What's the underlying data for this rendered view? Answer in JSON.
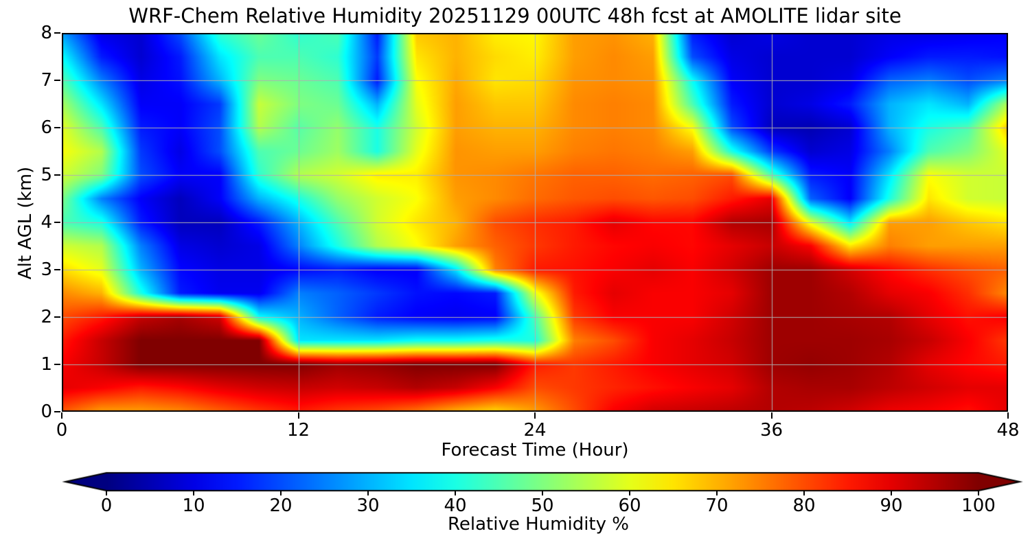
{
  "title": "WRF-Chem Relative Humidity 20251129 00UTC 48h fcst at AMOLITE lidar site",
  "colors": {
    "background": "#ffffff",
    "text": "#000000",
    "spine": "#000000",
    "grid": "#b0b0b0",
    "colormap_under": "#000080",
    "colormap_over": "#800000"
  },
  "chart_data": {
    "type": "heatmap",
    "title": "WRF-Chem Relative Humidity 20251129 00UTC 48h fcst at AMOLITE lidar site",
    "xlabel": "Forecast Time (Hour)",
    "ylabel": "Alt AGL (km)",
    "colorbar_label": "Relative Humidity %",
    "colormap": "jet",
    "grid": true,
    "legend_position": "none",
    "xlim": [
      0,
      48
    ],
    "ylim": [
      0,
      8
    ],
    "clim": [
      0,
      100
    ],
    "x_ticks": [
      0,
      12,
      24,
      36,
      48
    ],
    "y_ticks": [
      0,
      1,
      2,
      3,
      4,
      5,
      6,
      7,
      8
    ],
    "colorbar_ticks": [
      0,
      10,
      20,
      30,
      40,
      50,
      60,
      70,
      80,
      90,
      100
    ],
    "grid_x": [
      12,
      24,
      36
    ],
    "grid_y": [
      1,
      2,
      3,
      4,
      5,
      6,
      7
    ],
    "x": [
      0,
      2,
      4,
      6,
      8,
      10,
      12,
      14,
      16,
      18,
      20,
      22,
      24,
      26,
      28,
      30,
      32,
      34,
      36,
      38,
      40,
      42,
      44,
      46,
      48
    ],
    "y": [
      0,
      0.5,
      1,
      1.5,
      2,
      2.5,
      3,
      3.5,
      4,
      4.5,
      5,
      5.5,
      6,
      6.5,
      7,
      7.5,
      8
    ],
    "values_units": "%",
    "rh": [
      [
        79,
        72,
        72,
        74,
        78,
        82,
        85,
        82,
        80,
        76,
        70,
        66,
        72,
        80,
        88,
        92,
        93,
        94,
        95,
        94,
        92,
        89,
        88,
        86,
        90
      ],
      [
        90,
        88,
        85,
        87,
        90,
        92,
        93,
        92,
        93,
        95,
        93,
        88,
        80,
        82,
        84,
        86,
        88,
        90,
        95,
        96,
        96,
        94,
        92,
        90,
        90
      ],
      [
        88,
        93,
        100,
        100,
        100,
        100,
        100,
        97,
        98,
        100,
        100,
        100,
        85,
        82,
        85,
        88,
        90,
        92,
        97,
        98,
        97,
        95,
        90,
        87,
        85
      ],
      [
        85,
        93,
        100,
        100,
        100,
        100,
        35,
        35,
        35,
        38,
        38,
        40,
        40,
        75,
        80,
        88,
        90,
        93,
        97,
        97,
        97,
        96,
        93,
        88,
        82
      ],
      [
        80,
        85,
        93,
        96,
        92,
        38,
        30,
        22,
        15,
        12,
        11,
        12,
        45,
        82,
        88,
        88,
        88,
        92,
        97,
        97,
        96,
        95,
        90,
        86,
        88
      ],
      [
        74,
        70,
        40,
        15,
        11,
        11,
        25,
        22,
        18,
        14,
        13,
        15,
        60,
        85,
        90,
        88,
        88,
        90,
        97,
        97,
        95,
        90,
        88,
        83,
        74
      ],
      [
        66,
        60,
        30,
        13,
        10,
        10,
        13,
        15,
        12,
        12,
        35,
        75,
        85,
        86,
        88,
        90,
        88,
        92,
        97,
        97,
        92,
        87,
        83,
        80,
        78
      ],
      [
        58,
        55,
        25,
        10,
        8,
        10,
        25,
        40,
        55,
        62,
        72,
        78,
        82,
        85,
        87,
        88,
        87,
        90,
        93,
        88,
        65,
        75,
        72,
        72,
        72
      ],
      [
        45,
        40,
        15,
        6,
        6,
        15,
        30,
        45,
        58,
        65,
        70,
        80,
        83,
        85,
        90,
        87,
        87,
        95,
        96,
        60,
        35,
        72,
        72,
        68,
        65
      ],
      [
        50,
        25,
        12,
        6,
        12,
        30,
        40,
        52,
        58,
        62,
        72,
        74,
        77,
        79,
        80,
        79,
        80,
        85,
        90,
        22,
        12,
        40,
        65,
        58,
        57
      ],
      [
        58,
        50,
        20,
        12,
        12,
        42,
        55,
        58,
        64,
        64,
        73,
        74,
        76,
        78,
        78,
        77,
        78,
        80,
        45,
        15,
        12,
        35,
        62,
        58,
        57
      ],
      [
        62,
        55,
        18,
        10,
        20,
        45,
        48,
        53,
        40,
        60,
        73,
        72,
        72,
        75,
        76,
        75,
        72,
        40,
        18,
        8,
        10,
        25,
        45,
        50,
        60
      ],
      [
        60,
        45,
        15,
        12,
        20,
        55,
        46,
        52,
        40,
        58,
        72,
        70,
        70,
        74,
        75,
        74,
        62,
        20,
        6,
        5,
        8,
        30,
        40,
        45,
        68
      ],
      [
        54,
        35,
        12,
        12,
        18,
        57,
        50,
        48,
        30,
        60,
        72,
        68,
        68,
        74,
        75,
        74,
        45,
        15,
        8,
        10,
        15,
        30,
        35,
        30,
        55
      ],
      [
        46,
        25,
        10,
        14,
        30,
        50,
        48,
        45,
        15,
        62,
        71,
        65,
        66,
        73,
        74,
        73,
        38,
        12,
        8,
        8,
        10,
        22,
        25,
        20,
        25
      ],
      [
        38,
        15,
        8,
        15,
        35,
        45,
        45,
        42,
        18,
        65,
        70,
        66,
        64,
        72,
        74,
        72,
        20,
        10,
        8,
        8,
        8,
        12,
        15,
        15,
        14
      ],
      [
        28,
        10,
        8,
        20,
        42,
        48,
        42,
        45,
        15,
        68,
        70,
        64,
        63,
        72,
        73,
        70,
        15,
        8,
        10,
        8,
        8,
        10,
        10,
        11,
        12
      ]
    ]
  }
}
